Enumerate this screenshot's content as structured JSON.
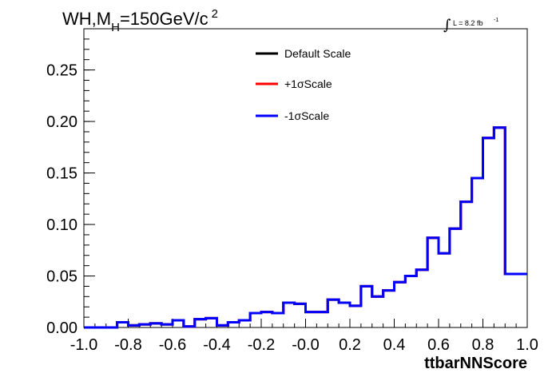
{
  "chart_data": {
    "type": "line",
    "title_parts": [
      "WH,M",
      "H",
      "=150GeV/c",
      "2"
    ],
    "lumi_parts": [
      "∫",
      "L = 8.2 fb",
      "-1"
    ],
    "xlabel": "ttbarNNScore",
    "ylabel": "",
    "xlim": [
      -1.0,
      1.0
    ],
    "ylim": [
      0,
      0.29
    ],
    "x_ticks": [
      "-1.0",
      "-0.8",
      "-0.6",
      "-0.4",
      "-0.2",
      "-0.0",
      "0.2",
      "0.4",
      "0.6",
      "0.8",
      "1.0"
    ],
    "y_ticks": [
      "0.00",
      "0.05",
      "0.10",
      "0.15",
      "0.20",
      "0.25"
    ],
    "bin_edges_range": [
      -1.0,
      1.0
    ],
    "n_bins": 40,
    "series": [
      {
        "name": "Default Scale",
        "color": "#000000",
        "values": [
          0,
          0,
          0,
          0.005,
          0.002,
          0.003,
          0.004,
          0.003,
          0.007,
          0.001,
          0.008,
          0.009,
          0.002,
          0.005,
          0.007,
          0.014,
          0.015,
          0.014,
          0.024,
          0.023,
          0.015,
          0.015,
          0.027,
          0.024,
          0.021,
          0.04,
          0.03,
          0.036,
          0.044,
          0.05,
          0.056,
          0.087,
          0.072,
          0.096,
          0.122,
          0.145,
          0.184,
          0.194,
          0.052,
          0.052
        ]
      },
      {
        "name": "+1σScale",
        "color": "#ff0000",
        "values": [
          0,
          0,
          0,
          0.005,
          0.002,
          0.003,
          0.004,
          0.003,
          0.007,
          0.001,
          0.008,
          0.009,
          0.002,
          0.005,
          0.007,
          0.014,
          0.015,
          0.014,
          0.024,
          0.023,
          0.015,
          0.015,
          0.027,
          0.024,
          0.021,
          0.04,
          0.03,
          0.036,
          0.044,
          0.05,
          0.056,
          0.087,
          0.072,
          0.096,
          0.122,
          0.145,
          0.184,
          0.194,
          0.052,
          0.052
        ]
      },
      {
        "name": "-1σScale",
        "color": "#0000ff",
        "values": [
          0,
          0,
          0,
          0.005,
          0.002,
          0.003,
          0.004,
          0.003,
          0.007,
          0.001,
          0.008,
          0.009,
          0.002,
          0.005,
          0.007,
          0.014,
          0.015,
          0.014,
          0.024,
          0.023,
          0.015,
          0.015,
          0.027,
          0.024,
          0.021,
          0.04,
          0.03,
          0.036,
          0.044,
          0.05,
          0.056,
          0.087,
          0.072,
          0.096,
          0.122,
          0.145,
          0.184,
          0.194,
          0.052,
          0.052
        ]
      }
    ],
    "legend_position": "top-center",
    "grid": false
  }
}
